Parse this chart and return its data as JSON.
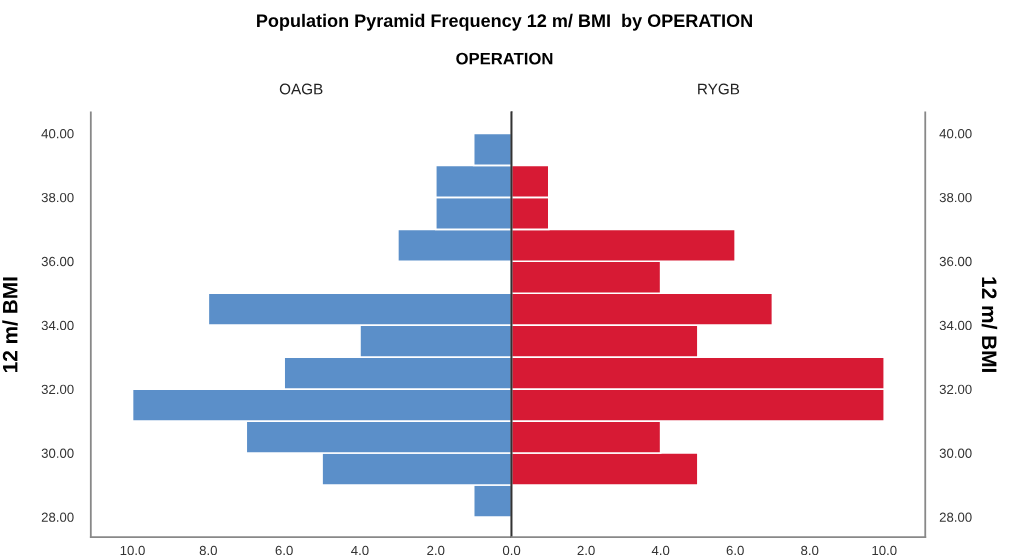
{
  "chart_data": [
    {
      "type": "histogram",
      "orientation": "horizontal",
      "title": "Population Pyramid Frequency 12 m/ BMI  by OPERATION",
      "subtitle": "OPERATION",
      "ylabel": "12 m/ BMI",
      "bins": [
        28,
        29,
        30,
        31,
        32,
        33,
        34,
        35,
        36,
        37,
        38,
        39,
        40
      ],
      "series": [
        {
          "name": "OAGB",
          "color": "#5b8fc9",
          "values": [
            1,
            5,
            7,
            10,
            6,
            4,
            8,
            null,
            3,
            2,
            2,
            1
          ]
        }
      ],
      "xlim": [
        11.1,
        0
      ],
      "xticks": [
        {
          "value": 10,
          "label": "10.0"
        },
        {
          "value": 8,
          "label": "8.0"
        },
        {
          "value": 6,
          "label": "6.0"
        },
        {
          "value": 4,
          "label": "4.0"
        },
        {
          "value": 2,
          "label": "2.0"
        },
        {
          "value": 0,
          "label": "0.0"
        }
      ],
      "ylim": [
        27.37,
        40.66
      ],
      "yticks": [
        {
          "value": 28,
          "label": "28.00"
        },
        {
          "value": 30,
          "label": "30.00"
        },
        {
          "value": 32,
          "label": "32.00"
        },
        {
          "value": 34,
          "label": "34.00"
        },
        {
          "value": 36,
          "label": "36.00"
        },
        {
          "value": 38,
          "label": "38.00"
        },
        {
          "value": 40,
          "label": "40.00"
        }
      ],
      "grid": false,
      "legend": false
    },
    {
      "type": "histogram",
      "orientation": "horizontal",
      "ylabel": "12 m/ BMI",
      "bins": [
        29,
        30,
        31,
        32,
        33,
        34,
        35,
        36,
        37,
        38,
        39
      ],
      "series": [
        {
          "name": "RYGB",
          "color": "#d71a34",
          "values": [
            5,
            4,
            10,
            10,
            5,
            7,
            4,
            6,
            1,
            1
          ]
        }
      ],
      "xlim": [
        0,
        11.1
      ],
      "xticks": [
        {
          "value": 0,
          "label": null
        },
        {
          "value": 2,
          "label": "2.0"
        },
        {
          "value": 4,
          "label": "4.0"
        },
        {
          "value": 6,
          "label": "6.0"
        },
        {
          "value": 8,
          "label": "8.0"
        },
        {
          "value": 10,
          "label": "10.0"
        }
      ],
      "ylim": [
        27.37,
        40.66
      ],
      "yticks": [
        {
          "value": 28,
          "label": "28.00"
        },
        {
          "value": 30,
          "label": "30.00"
        },
        {
          "value": 32,
          "label": "32.00"
        },
        {
          "value": 34,
          "label": "34.00"
        },
        {
          "value": 36,
          "label": "36.00"
        },
        {
          "value": 38,
          "label": "38.00"
        },
        {
          "value": 40,
          "label": "40.00"
        }
      ],
      "grid": false,
      "legend": false
    }
  ]
}
